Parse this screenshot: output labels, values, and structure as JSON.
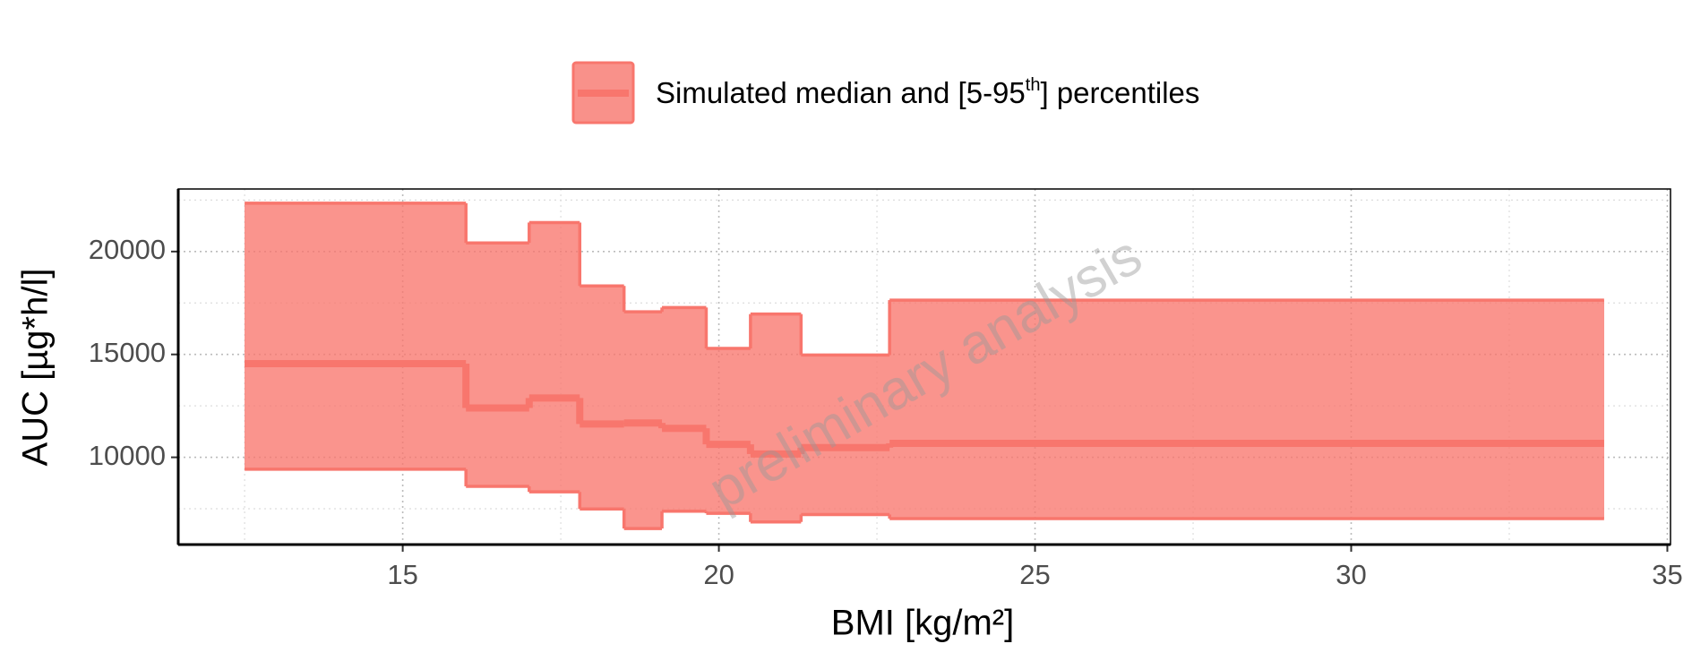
{
  "chart_data": {
    "type": "ribbon",
    "legend_label": [
      "Simulated median and [5-95",
      "th",
      "] percentiles"
    ],
    "xlabel": "BMI [kg/m²]",
    "ylabel": "AUC [µg*h/l]",
    "watermark": "preliminary analysis",
    "color": "#f8766d",
    "bins": [
      12.5,
      16.0,
      17.0,
      17.8,
      18.5,
      19.1,
      19.8,
      20.5,
      21.3,
      22.7,
      34.0
    ],
    "median": [
      14550,
      12400,
      12880,
      11620,
      11670,
      11410,
      10630,
      10160,
      10470,
      10680
    ],
    "lower": [
      9420,
      8590,
      8320,
      7490,
      6540,
      7380,
      7280,
      6860,
      7220,
      7020
    ],
    "upper": [
      22350,
      20420,
      21410,
      18330,
      17070,
      17280,
      15290,
      16960,
      14970,
      17640
    ],
    "xlim": [
      11.45,
      35.05
    ],
    "ylim": [
      5760,
      23040
    ],
    "xticks": [
      15,
      20,
      25,
      30,
      35
    ],
    "yticks": [
      10000,
      15000,
      20000
    ],
    "minor_xticks": [
      12.5,
      17.5,
      22.5,
      27.5,
      32.5
    ],
    "minor_yticks": [
      7500,
      12500,
      17500,
      22500
    ],
    "grid": true
  }
}
